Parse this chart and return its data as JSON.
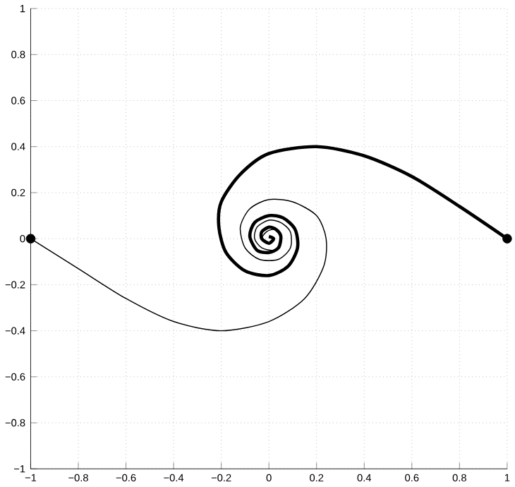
{
  "chart_data": {
    "type": "line",
    "xlim": [
      -1,
      1
    ],
    "ylim": [
      -1,
      1
    ],
    "xticks": [
      {
        "value": -1,
        "label": "−1"
      },
      {
        "value": -0.8,
        "label": "−0.8"
      },
      {
        "value": -0.6,
        "label": "−0.6"
      },
      {
        "value": -0.4,
        "label": "−0.4"
      },
      {
        "value": -0.2,
        "label": "−0.2"
      },
      0,
      0.2,
      0.4,
      0.6,
      0.8,
      1
    ],
    "yticks": [
      {
        "value": -1,
        "label": "−1"
      },
      {
        "value": -0.8,
        "label": "−0.8"
      },
      {
        "value": -0.6,
        "label": "−0.6"
      },
      {
        "value": -0.4,
        "label": "−0.4"
      },
      {
        "value": -0.2,
        "label": "−0.2"
      },
      0,
      0.2,
      0.4,
      0.6,
      0.8,
      1
    ],
    "grid": true,
    "marker": "none",
    "line_style": "solid",
    "series": [
      {
        "color": "#000000",
        "x": [
          -1,
          -0.8,
          -0.6,
          -0.4,
          -0.2,
          0,
          0.15,
          0.23,
          0.24,
          0.2,
          0.1,
          0,
          -0.08,
          -0.12,
          -0.1,
          -0.04,
          0.04,
          0.09,
          0.09,
          0.05,
          0,
          -0.05,
          -0.06,
          -0.03,
          0.02,
          0.05,
          0.05,
          0.02,
          -0.01,
          -0.03,
          0,
          0.02,
          0
        ],
        "values": [
          0,
          -0.13,
          -0.26,
          -0.36,
          -0.4,
          -0.36,
          -0.26,
          -0.12,
          0,
          0.1,
          0.16,
          0.17,
          0.13,
          0.05,
          -0.04,
          -0.09,
          -0.09,
          -0.04,
          0.03,
          0.07,
          0.08,
          0.05,
          0,
          -0.04,
          -0.05,
          -0.02,
          0.02,
          0.04,
          0.03,
          0,
          -0.02,
          0,
          0.01
        ]
      },
      {
        "color": "#000000",
        "x": [
          1,
          0.8,
          0.6,
          0.4,
          0.2,
          0,
          -0.12,
          -0.2,
          -0.21,
          -0.18,
          -0.1,
          0,
          0.08,
          0.12,
          0.11,
          0.06,
          0,
          -0.06,
          -0.08,
          -0.05,
          0,
          0.04,
          0.05,
          0.03,
          0,
          -0.03,
          -0.03,
          0,
          0.02,
          0
        ],
        "values": [
          0,
          0.14,
          0.27,
          0.36,
          0.4,
          0.37,
          0.28,
          0.16,
          0.05,
          -0.06,
          -0.14,
          -0.16,
          -0.12,
          -0.04,
          0.04,
          0.09,
          0.1,
          0.07,
          0.01,
          -0.05,
          -0.06,
          -0.04,
          0.01,
          0.04,
          0.05,
          0.03,
          0,
          -0.02,
          0,
          0.01
        ]
      },
      {
        "type": "scatter",
        "marker": "circle",
        "color": "#000000",
        "x": [
          -1,
          1
        ],
        "values": [
          0,
          0
        ]
      }
    ]
  }
}
